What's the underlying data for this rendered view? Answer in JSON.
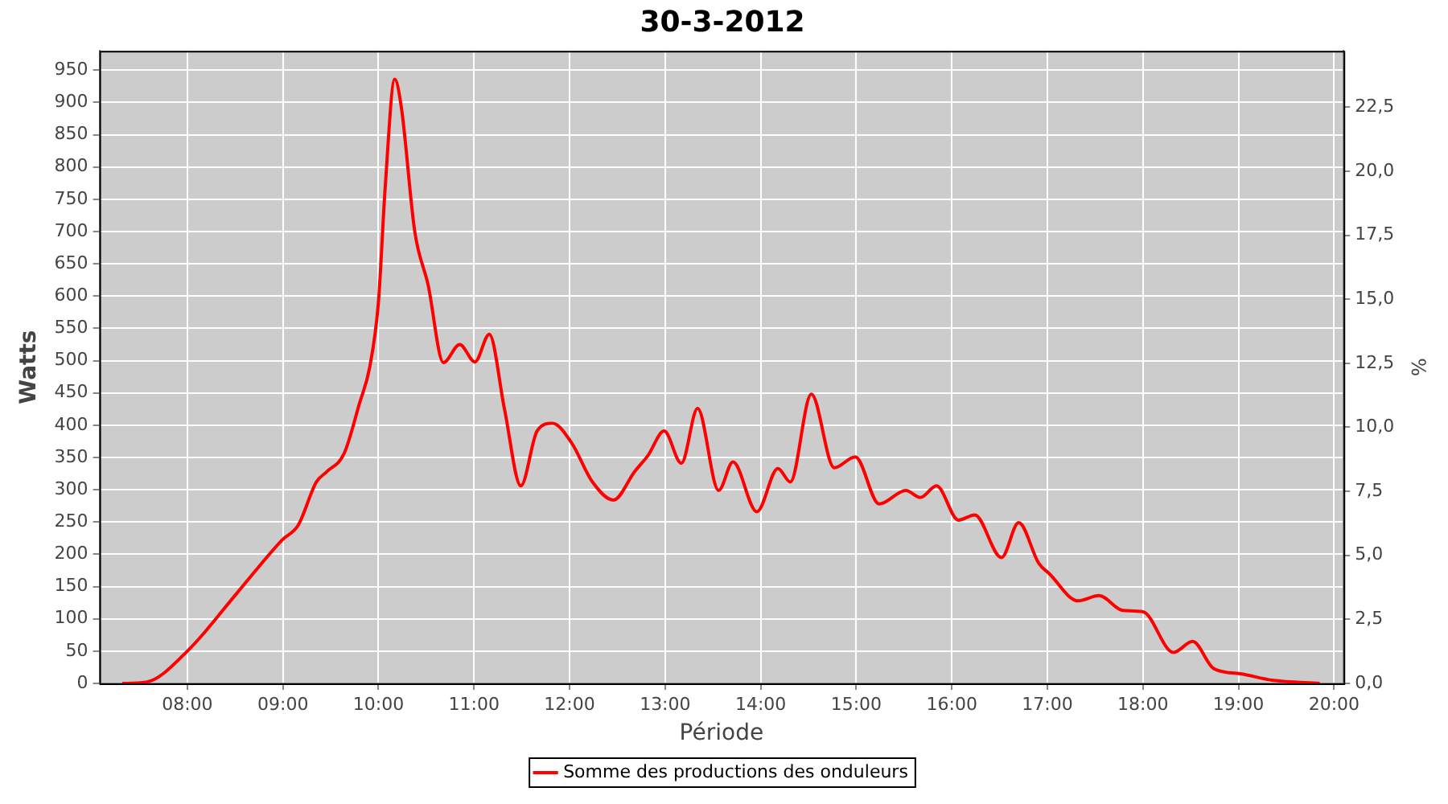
{
  "chart_data": {
    "type": "line",
    "title": "30-3-2012",
    "xlabel": "Période",
    "ylabel": "Watts",
    "y2label": "%",
    "x": [
      7.32,
      7.57,
      8.0,
      8.52,
      8.99,
      9.16,
      9.35,
      9.46,
      9.64,
      9.8,
      9.91,
      10.0,
      10.07,
      10.17,
      10.24,
      10.38,
      10.52,
      10.68,
      10.85,
      11.01,
      11.16,
      11.32,
      11.49,
      11.66,
      11.82,
      12.02,
      12.24,
      12.46,
      12.68,
      12.82,
      12.99,
      13.17,
      13.34,
      13.56,
      13.71,
      13.96,
      14.18,
      14.31,
      14.53,
      14.77,
      14.99,
      15.24,
      15.52,
      15.67,
      15.84,
      16.07,
      16.24,
      16.52,
      16.7,
      16.91,
      17.02,
      17.32,
      17.54,
      17.79,
      18.0,
      18.32,
      18.52,
      18.74,
      19.02,
      19.35,
      19.85
    ],
    "series": [
      {
        "name": "Somme des productions des onduleurs",
        "color": "#ff0000",
        "values": [
          0,
          2,
          50,
          140,
          222,
          245,
          312,
          328,
          356,
          433,
          491,
          591,
          767,
          936,
          892,
          700,
          617,
          497,
          525,
          498,
          541,
          424,
          306,
          391,
          403,
          373,
          312,
          284,
          328,
          353,
          391,
          341,
          426,
          299,
          343,
          266,
          333,
          312,
          448,
          334,
          351,
          278,
          299,
          288,
          306,
          253,
          261,
          195,
          249,
          186,
          170,
          128,
          136,
          113,
          111,
          48,
          65,
          23,
          15,
          5,
          0
        ]
      }
    ],
    "xlim": [
      7.08,
      20.1
    ],
    "xticks": [
      {
        "value": 8,
        "label": "08:00"
      },
      {
        "value": 9,
        "label": "09:00"
      },
      {
        "value": 10,
        "label": "10:00"
      },
      {
        "value": 11,
        "label": "11:00"
      },
      {
        "value": 12,
        "label": "12:00"
      },
      {
        "value": 13,
        "label": "13:00"
      },
      {
        "value": 14,
        "label": "14:00"
      },
      {
        "value": 15,
        "label": "15:00"
      },
      {
        "value": 16,
        "label": "16:00"
      },
      {
        "value": 17,
        "label": "17:00"
      },
      {
        "value": 18,
        "label": "18:00"
      },
      {
        "value": 19,
        "label": "19:00"
      },
      {
        "value": 20,
        "label": "20:00"
      }
    ],
    "ylim": [
      0,
      980
    ],
    "yticks": [
      0,
      50,
      100,
      150,
      200,
      250,
      300,
      350,
      400,
      450,
      500,
      550,
      600,
      650,
      700,
      750,
      800,
      850,
      900,
      950
    ],
    "y2lim": [
      0,
      24.7
    ],
    "y2ticks": [
      {
        "value": 0,
        "label": "0,0"
      },
      {
        "value": 2.5,
        "label": "2,5"
      },
      {
        "value": 5,
        "label": "5,0"
      },
      {
        "value": 7.5,
        "label": "7,5"
      },
      {
        "value": 10,
        "label": "10,0"
      },
      {
        "value": 12.5,
        "label": "12,5"
      },
      {
        "value": 15,
        "label": "15,0"
      },
      {
        "value": 17.5,
        "label": "17,5"
      },
      {
        "value": 20,
        "label": "20,0"
      },
      {
        "value": 22.5,
        "label": "22,5"
      }
    ],
    "grid": true,
    "legend": "bottom",
    "marker": "none",
    "line_style": "solid"
  }
}
